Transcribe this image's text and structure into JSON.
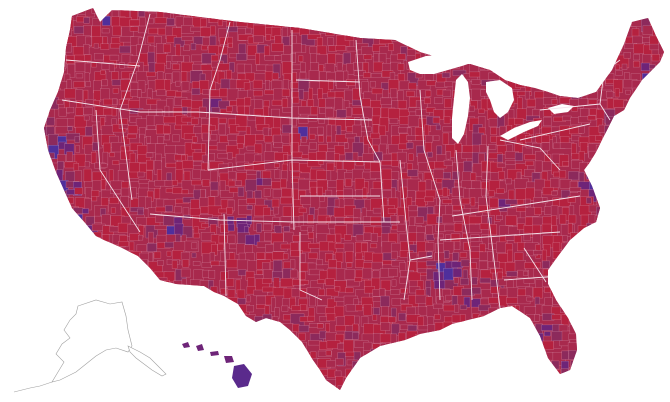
{
  "map": {
    "kind": "us-county-choropleth",
    "colors": {
      "background": "#ffffff",
      "strong_red": "#b5213f",
      "red": "#a8294d",
      "red_purple": "#8c2a5c",
      "purple": "#6e2478",
      "blue_purple": "#4f2f9c",
      "blue": "#4350c6",
      "county_border": "#e9b8cc",
      "state_border": "#f5e4ec",
      "alaska_outline": "#a0a0a0"
    },
    "insets": [
      "alaska-outline",
      "hawaii"
    ],
    "great_lakes_visible": true
  }
}
